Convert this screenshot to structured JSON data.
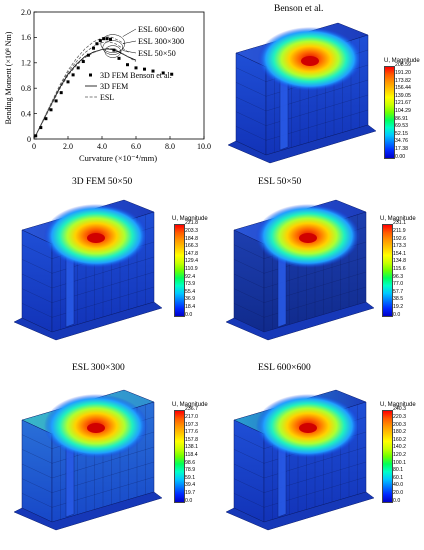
{
  "chart_data": {
    "type": "scatter",
    "xlabel": "Curvature (×10⁻⁴/mm)",
    "ylabel": "Bending Moment (×10⁸ Nm)",
    "xlim": [
      0,
      10
    ],
    "ylim": [
      0,
      2.0
    ],
    "xticks": [
      "0",
      "2.0",
      "4.0",
      "6.0",
      "8.0",
      "10.0"
    ],
    "yticks": [
      "0",
      "0.4",
      "0.8",
      "1.2",
      "1.6",
      "2.0"
    ],
    "legend_position": "center-right",
    "series": [
      {
        "name": "3D FEM Benson et al.",
        "style": "markers",
        "x": [
          0.1,
          0.4,
          0.7,
          1.0,
          1.3,
          1.6,
          2.0,
          2.3,
          2.6,
          2.9,
          3.2,
          3.5,
          3.7,
          3.9,
          4.1,
          4.3,
          4.5,
          4.7,
          5.0,
          5.5,
          6.0,
          6.5,
          7.0,
          7.6,
          8.1
        ],
        "y": [
          0.05,
          0.18,
          0.32,
          0.46,
          0.6,
          0.73,
          0.9,
          1.01,
          1.12,
          1.22,
          1.32,
          1.43,
          1.5,
          1.55,
          1.58,
          1.58,
          1.57,
          1.4,
          1.27,
          1.17,
          1.12,
          1.1,
          1.07,
          1.04,
          1.02
        ]
      },
      {
        "name": "3D FEM",
        "style": "solid",
        "x": [
          0,
          0.5,
          1.0,
          1.5,
          2.0,
          2.5,
          3.0,
          3.5,
          4.0,
          4.3,
          4.6,
          5.0,
          5.5,
          6.0
        ],
        "y": [
          0,
          0.27,
          0.54,
          0.8,
          1.02,
          1.18,
          1.3,
          1.37,
          1.41,
          1.42,
          1.41,
          1.37,
          1.3,
          1.24
        ]
      },
      {
        "name": "ESL",
        "style": "dashed",
        "curves": [
          {
            "label": "ESL 600×600",
            "x": [
              0,
              0.5,
              1.0,
              1.5,
              2.0,
              2.5,
              3.0,
              3.5,
              4.0,
              4.3,
              4.6,
              5.0,
              5.3
            ],
            "y": [
              0,
              0.28,
              0.56,
              0.84,
              1.08,
              1.27,
              1.42,
              1.53,
              1.59,
              1.61,
              1.6,
              1.55,
              1.5
            ]
          },
          {
            "label": "ESL 300×300",
            "x": [
              0,
              0.5,
              1.0,
              1.5,
              2.0,
              2.5,
              3.0,
              3.5,
              4.0,
              4.4,
              4.8,
              5.2,
              5.6
            ],
            "y": [
              0,
              0.27,
              0.55,
              0.82,
              1.05,
              1.22,
              1.36,
              1.46,
              1.52,
              1.53,
              1.5,
              1.43,
              1.36
            ]
          },
          {
            "label": "ESL 50×50",
            "x": [
              0,
              0.5,
              1.0,
              1.5,
              2.0,
              2.5,
              3.0,
              3.5,
              4.0,
              4.4,
              4.8,
              5.2,
              5.6,
              6.0
            ],
            "y": [
              0,
              0.26,
              0.52,
              0.78,
              1.0,
              1.16,
              1.28,
              1.36,
              1.41,
              1.43,
              1.41,
              1.35,
              1.28,
              1.22
            ]
          }
        ]
      }
    ],
    "annotations": [
      "ESL 600×600",
      "ESL 300×300",
      "ESL 50×50"
    ]
  },
  "panels": {
    "benson": {
      "title": "Benson et al.",
      "cb_title": "U, Magnitude",
      "ticks": [
        "208.59",
        "191.20",
        "173.82",
        "156.44",
        "139.05",
        "121.67",
        "104.29",
        "86.91",
        "69.53",
        "52.15",
        "34.76",
        "17.38",
        "0.00"
      ]
    },
    "fem50": {
      "title": "3D FEM 50×50",
      "cb_title": "U, Magnitude",
      "ticks": [
        "221.8",
        "203.3",
        "184.8",
        "166.3",
        "147.8",
        "129.4",
        "110.9",
        "92.4",
        "73.9",
        "55.4",
        "36.9",
        "18.4",
        "0.0"
      ]
    },
    "esl50": {
      "title": "ESL 50×50",
      "cb_title": "U, Magnitude",
      "ticks": [
        "231.1",
        "211.9",
        "192.6",
        "173.3",
        "154.1",
        "134.8",
        "115.6",
        "96.3",
        "77.0",
        "57.7",
        "38.5",
        "19.2",
        "0.0"
      ]
    },
    "esl300": {
      "title": "ESL 300×300",
      "cb_title": "U, Magnitude",
      "ticks": [
        "236.7",
        "217.0",
        "197.3",
        "177.6",
        "157.8",
        "138.1",
        "118.4",
        "98.6",
        "78.9",
        "59.1",
        "39.4",
        "19.7",
        "0.0"
      ]
    },
    "esl600": {
      "title": "ESL 600×600",
      "cb_title": "U, Magnitude",
      "ticks": [
        "240.3",
        "220.3",
        "200.3",
        "180.2",
        "160.2",
        "140.2",
        "120.2",
        "100.1",
        "80.1",
        "60.1",
        "40.0",
        "20.0",
        "0.0"
      ]
    }
  },
  "colors": {
    "contour": [
      "#ff0000",
      "#ff5a00",
      "#ff9600",
      "#ffc800",
      "#ffff00",
      "#c8ff00",
      "#6eff00",
      "#00ff5a",
      "#00ffc8",
      "#00c8ff",
      "#0078ff",
      "#0028ff",
      "#0000c8"
    ]
  }
}
